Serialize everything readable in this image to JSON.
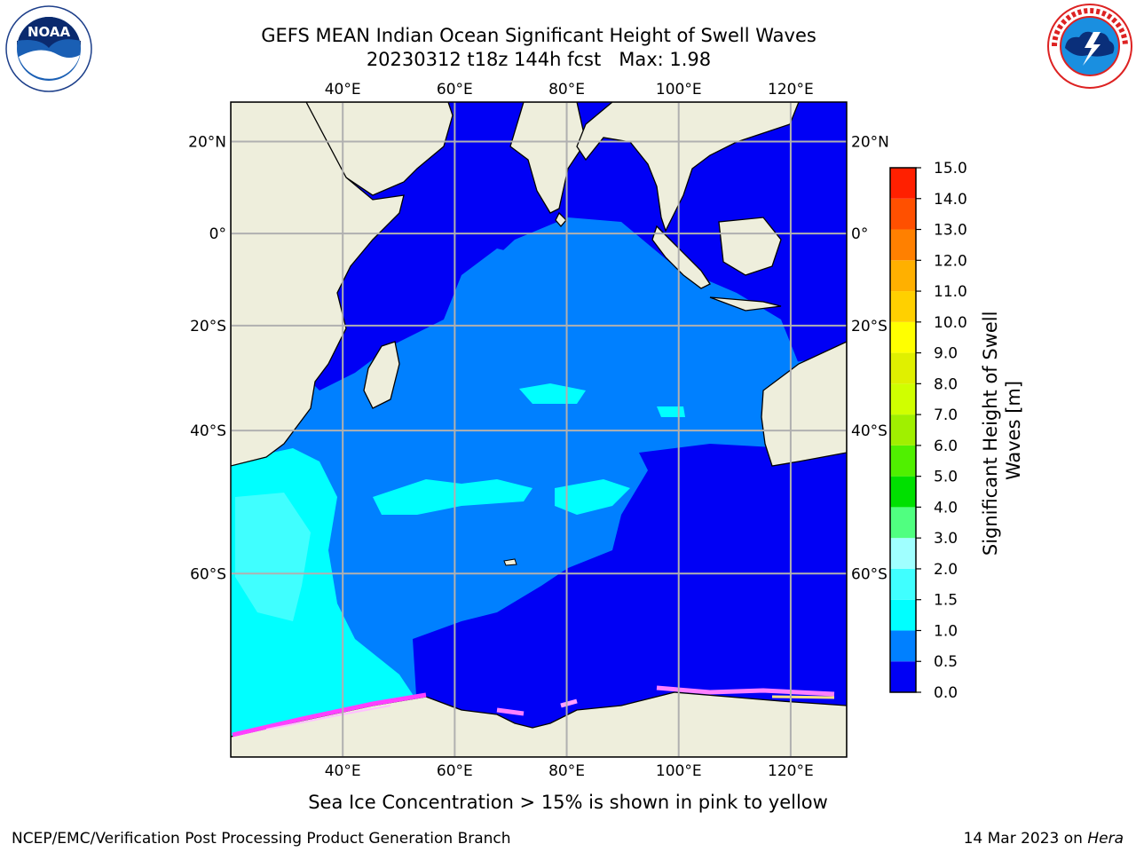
{
  "header": {
    "title_line1": "GEFS MEAN Indian Ocean Significant Height of Swell Waves",
    "title_line2": "20230312 t18z 144h fcst   Max: 1.98"
  },
  "logos": {
    "left": {
      "icon": "noaa-logo-icon",
      "text": "NOAA"
    },
    "right": {
      "icon": "national-weather-service-logo-icon"
    }
  },
  "map": {
    "lon_range": [
      20,
      130
    ],
    "lat_range": [
      -75,
      28
    ],
    "lon_ticks": [
      {
        "value": 40,
        "label": "40°E"
      },
      {
        "value": 60,
        "label": "60°E"
      },
      {
        "value": 80,
        "label": "80°E"
      },
      {
        "value": 100,
        "label": "100°E"
      },
      {
        "value": 120,
        "label": "120°E"
      }
    ],
    "lat_ticks": [
      {
        "value": 20,
        "label": "20°N"
      },
      {
        "value": 0,
        "label": "0°"
      },
      {
        "value": -20,
        "label": "20°S"
      },
      {
        "value": -40,
        "label": "40°S"
      },
      {
        "value": -60,
        "label": "60°S"
      }
    ],
    "grid": true,
    "land_color": "#eeeedc",
    "ocean_colors": {
      "very_low": "#0000f5",
      "low": "#0080ff",
      "mid": "#00ffff",
      "high": "#40ffff"
    }
  },
  "colorbar": {
    "label": "Significant Height of Swell Waves [m]",
    "label_line1": "Significant Height of Swell",
    "label_line2": "Waves [m]",
    "ticks": [
      "0.0",
      "0.5",
      "1.0",
      "1.5",
      "2.0",
      "3.0",
      "4.0",
      "5.0",
      "6.0",
      "7.0",
      "8.0",
      "9.0",
      "10.0",
      "11.0",
      "12.0",
      "13.0",
      "14.0",
      "15.0"
    ],
    "colors": [
      "#0000f5",
      "#0080ff",
      "#00ffff",
      "#40ffff",
      "#a0ffff",
      "#50ff80",
      "#00e000",
      "#50f000",
      "#a0f000",
      "#d0ff00",
      "#e0f000",
      "#ffff00",
      "#ffd000",
      "#ffb000",
      "#ff8000",
      "#ff5000",
      "#ff2000",
      "#ff0000"
    ]
  },
  "ice_note": "Sea Ice Concentration > 15% is shown in pink to yellow",
  "footer": {
    "left": "NCEP/EMC/Verification Post Processing Product Generation Branch",
    "right_date": "14 Mar 2023 on ",
    "right_host": "Hera"
  }
}
